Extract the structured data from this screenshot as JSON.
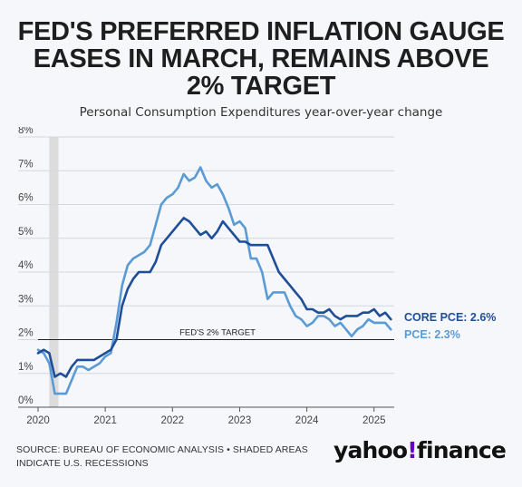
{
  "title_lines": [
    "FED'S PREFERRED INFLATION GAUGE",
    "EASES IN MARCH, REMAINS ABOVE",
    "2% TARGET"
  ],
  "subtitle": "Personal Consumption Expenditures year-over-year change",
  "source_lines": [
    "SOURCE: BUREAU OF ECONOMIC ANALYSIS • SHADED AREAS",
    "INDICATE U.S. RECESSIONS"
  ],
  "brand": {
    "left": "yahoo",
    "mark": "!",
    "right": "finance"
  },
  "colors": {
    "core_pce": "#1f4e99",
    "pce": "#5b9bd5",
    "recession": "#dcdcdc",
    "grid": "#d4d9e0"
  },
  "chart_data": {
    "type": "line",
    "x_ticks": [
      "2020",
      "2021",
      "2022",
      "2023",
      "2024",
      "2025"
    ],
    "y_ticks": [
      "0%",
      "1%",
      "2%",
      "3%",
      "4%",
      "5%",
      "6%",
      "7%",
      "8%"
    ],
    "ylim": [
      0,
      8
    ],
    "xlim": [
      "2020-01",
      "2025-04"
    ],
    "grid": true,
    "recession": {
      "start": "2020-03",
      "end": "2020-04"
    },
    "reference_line": {
      "value": 2,
      "label": "FED'S 2% TARGET"
    },
    "series": [
      {
        "name": "CORE PCE",
        "end_label": "CORE PCE: 2.6%",
        "points": [
          [
            "2020-01",
            1.6
          ],
          [
            "2020-02",
            1.7
          ],
          [
            "2020-03",
            1.6
          ],
          [
            "2020-04",
            0.9
          ],
          [
            "2020-05",
            1.0
          ],
          [
            "2020-06",
            0.9
          ],
          [
            "2020-07",
            1.2
          ],
          [
            "2020-08",
            1.4
          ],
          [
            "2020-09",
            1.4
          ],
          [
            "2020-10",
            1.4
          ],
          [
            "2020-11",
            1.4
          ],
          [
            "2020-12",
            1.5
          ],
          [
            "2021-01",
            1.6
          ],
          [
            "2021-02",
            1.7
          ],
          [
            "2021-03",
            2.0
          ],
          [
            "2021-04",
            3.0
          ],
          [
            "2021-05",
            3.5
          ],
          [
            "2021-06",
            3.8
          ],
          [
            "2021-07",
            4.0
          ],
          [
            "2021-08",
            4.0
          ],
          [
            "2021-09",
            4.0
          ],
          [
            "2021-10",
            4.3
          ],
          [
            "2021-11",
            4.8
          ],
          [
            "2021-12",
            5.0
          ],
          [
            "2022-01",
            5.2
          ],
          [
            "2022-02",
            5.4
          ],
          [
            "2022-03",
            5.6
          ],
          [
            "2022-04",
            5.5
          ],
          [
            "2022-05",
            5.3
          ],
          [
            "2022-06",
            5.1
          ],
          [
            "2022-07",
            5.2
          ],
          [
            "2022-08",
            5.0
          ],
          [
            "2022-09",
            5.2
          ],
          [
            "2022-10",
            5.5
          ],
          [
            "2022-11",
            5.3
          ],
          [
            "2022-12",
            5.1
          ],
          [
            "2023-01",
            4.9
          ],
          [
            "2023-02",
            4.9
          ],
          [
            "2023-03",
            4.8
          ],
          [
            "2023-04",
            4.8
          ],
          [
            "2023-05",
            4.8
          ],
          [
            "2023-06",
            4.8
          ],
          [
            "2023-07",
            4.4
          ],
          [
            "2023-08",
            4.0
          ],
          [
            "2023-09",
            3.8
          ],
          [
            "2023-10",
            3.6
          ],
          [
            "2023-11",
            3.4
          ],
          [
            "2023-12",
            3.2
          ],
          [
            "2024-01",
            2.9
          ],
          [
            "2024-02",
            2.9
          ],
          [
            "2024-03",
            2.8
          ],
          [
            "2024-04",
            2.8
          ],
          [
            "2024-05",
            2.9
          ],
          [
            "2024-06",
            2.7
          ],
          [
            "2024-07",
            2.6
          ],
          [
            "2024-08",
            2.7
          ],
          [
            "2024-09",
            2.7
          ],
          [
            "2024-10",
            2.7
          ],
          [
            "2024-11",
            2.8
          ],
          [
            "2024-12",
            2.8
          ],
          [
            "2025-01",
            2.9
          ],
          [
            "2025-02",
            2.7
          ],
          [
            "2025-03",
            2.8
          ],
          [
            "2025-04",
            2.6
          ]
        ]
      },
      {
        "name": "PCE",
        "end_label": "PCE: 2.3%",
        "points": [
          [
            "2020-01",
            1.7
          ],
          [
            "2020-02",
            1.6
          ],
          [
            "2020-03",
            1.3
          ],
          [
            "2020-04",
            0.4
          ],
          [
            "2020-05",
            0.4
          ],
          [
            "2020-06",
            0.4
          ],
          [
            "2020-07",
            0.8
          ],
          [
            "2020-08",
            1.2
          ],
          [
            "2020-09",
            1.2
          ],
          [
            "2020-10",
            1.1
          ],
          [
            "2020-11",
            1.2
          ],
          [
            "2020-12",
            1.3
          ],
          [
            "2021-01",
            1.5
          ],
          [
            "2021-02",
            1.6
          ],
          [
            "2021-03",
            2.5
          ],
          [
            "2021-04",
            3.6
          ],
          [
            "2021-05",
            4.2
          ],
          [
            "2021-06",
            4.4
          ],
          [
            "2021-07",
            4.5
          ],
          [
            "2021-08",
            4.6
          ],
          [
            "2021-09",
            4.8
          ],
          [
            "2021-10",
            5.4
          ],
          [
            "2021-11",
            6.0
          ],
          [
            "2021-12",
            6.2
          ],
          [
            "2022-01",
            6.3
          ],
          [
            "2022-02",
            6.5
          ],
          [
            "2022-03",
            6.9
          ],
          [
            "2022-04",
            6.7
          ],
          [
            "2022-05",
            6.8
          ],
          [
            "2022-06",
            7.1
          ],
          [
            "2022-07",
            6.7
          ],
          [
            "2022-08",
            6.5
          ],
          [
            "2022-09",
            6.6
          ],
          [
            "2022-10",
            6.3
          ],
          [
            "2022-11",
            5.9
          ],
          [
            "2022-12",
            5.4
          ],
          [
            "2023-01",
            5.5
          ],
          [
            "2023-02",
            5.3
          ],
          [
            "2023-03",
            4.4
          ],
          [
            "2023-04",
            4.4
          ],
          [
            "2023-05",
            4.0
          ],
          [
            "2023-06",
            3.2
          ],
          [
            "2023-07",
            3.4
          ],
          [
            "2023-08",
            3.4
          ],
          [
            "2023-09",
            3.4
          ],
          [
            "2023-10",
            3.0
          ],
          [
            "2023-11",
            2.7
          ],
          [
            "2023-12",
            2.6
          ],
          [
            "2024-01",
            2.4
          ],
          [
            "2024-02",
            2.5
          ],
          [
            "2024-03",
            2.7
          ],
          [
            "2024-04",
            2.7
          ],
          [
            "2024-05",
            2.6
          ],
          [
            "2024-06",
            2.4
          ],
          [
            "2024-07",
            2.5
          ],
          [
            "2024-08",
            2.3
          ],
          [
            "2024-09",
            2.1
          ],
          [
            "2024-10",
            2.3
          ],
          [
            "2024-11",
            2.4
          ],
          [
            "2024-12",
            2.6
          ],
          [
            "2025-01",
            2.5
          ],
          [
            "2025-02",
            2.5
          ],
          [
            "2025-03",
            2.5
          ],
          [
            "2025-04",
            2.3
          ]
        ]
      }
    ]
  }
}
